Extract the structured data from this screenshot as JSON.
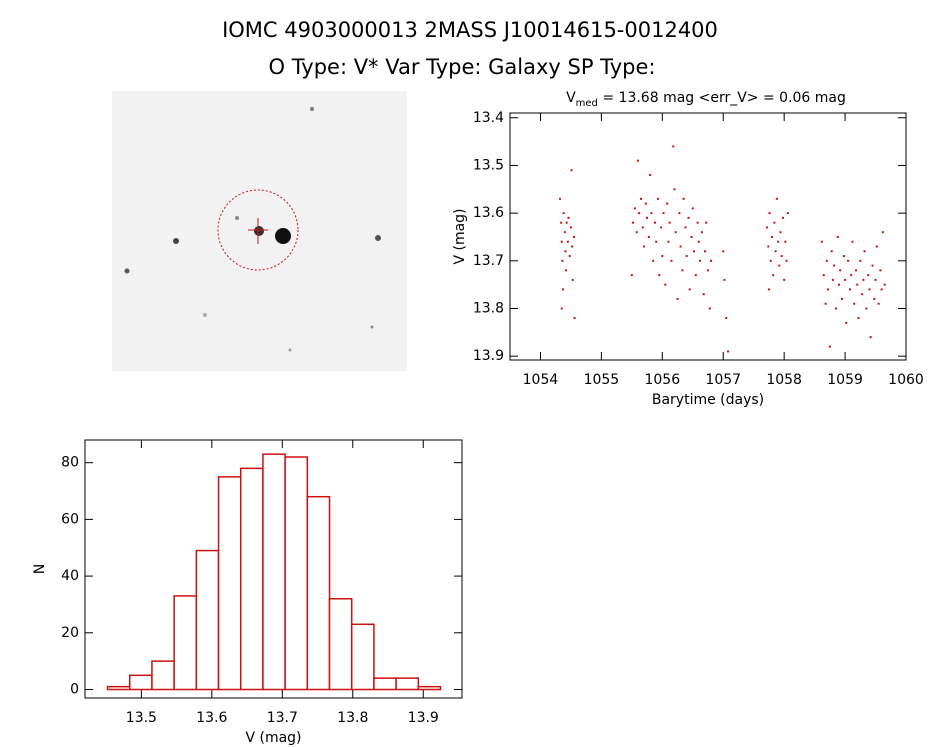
{
  "title": "IOMC 4903000013   2MASS J10014615-0012400",
  "subtitle": "O Type: V*  Var Type: Galaxy  SP Type:",
  "chart_data": [
    {
      "type": "scatter",
      "title": [
        "V",
        "med",
        " = 13.68 mag <err_V> = 0.06 mag"
      ],
      "x_label": "Barytime (days)",
      "y_label": "V (mag)",
      "color": "#cc1111",
      "xlim": [
        1053.5,
        1060
      ],
      "xticks": [
        1054,
        1055,
        1056,
        1057,
        1058,
        1059,
        1060
      ],
      "ylim": [
        13.908,
        13.39
      ],
      "yticks": [
        13.4,
        13.5,
        13.6,
        13.7,
        13.8,
        13.9
      ],
      "x": [
        1054.32,
        1054.34,
        1054.35,
        1054.36,
        1054.37,
        1054.38,
        1054.4,
        1054.41,
        1054.42,
        1054.43,
        1054.45,
        1054.46,
        1054.48,
        1054.5,
        1054.51,
        1054.52,
        1054.53,
        1054.55,
        1054.56,
        1054.35,
        1055.5,
        1055.52,
        1055.55,
        1055.58,
        1055.6,
        1055.62,
        1055.65,
        1055.68,
        1055.7,
        1055.73,
        1055.75,
        1055.78,
        1055.8,
        1055.82,
        1055.85,
        1055.88,
        1055.9,
        1055.93,
        1055.95,
        1055.98,
        1056.0,
        1056.02,
        1056.05,
        1056.08,
        1056.1,
        1056.12,
        1056.15,
        1056.18,
        1056.2,
        1056.22,
        1056.25,
        1056.28,
        1056.3,
        1056.33,
        1056.35,
        1056.38,
        1056.4,
        1056.43,
        1056.45,
        1056.48,
        1056.5,
        1056.52,
        1056.55,
        1056.58,
        1056.6,
        1056.62,
        1056.65,
        1056.68,
        1056.7,
        1056.72,
        1056.75,
        1056.78,
        1056.8,
        1057.0,
        1057.02,
        1057.05,
        1057.08,
        1057.72,
        1057.74,
        1057.76,
        1057.78,
        1057.8,
        1057.82,
        1057.84,
        1057.86,
        1057.88,
        1057.9,
        1057.92,
        1057.94,
        1057.96,
        1057.98,
        1058.0,
        1058.02,
        1058.04,
        1058.06,
        1057.75,
        1058.62,
        1058.65,
        1058.68,
        1058.7,
        1058.72,
        1058.75,
        1058.78,
        1058.8,
        1058.82,
        1058.85,
        1058.88,
        1058.9,
        1058.92,
        1058.95,
        1058.98,
        1059.0,
        1059.02,
        1059.05,
        1059.08,
        1059.1,
        1059.12,
        1059.15,
        1059.18,
        1059.2,
        1059.22,
        1059.25,
        1059.28,
        1059.3,
        1059.32,
        1059.35,
        1059.38,
        1059.4,
        1059.42,
        1059.45,
        1059.48,
        1059.5,
        1059.52,
        1059.55,
        1059.58,
        1059.6,
        1059.62,
        1059.65
      ],
      "values": [
        13.57,
        13.62,
        13.66,
        13.7,
        13.76,
        13.6,
        13.64,
        13.68,
        13.72,
        13.62,
        13.66,
        13.61,
        13.69,
        13.63,
        13.51,
        13.67,
        13.74,
        13.65,
        13.82,
        13.8,
        13.73,
        13.62,
        13.59,
        13.64,
        13.49,
        13.6,
        13.57,
        13.63,
        13.67,
        13.58,
        13.61,
        13.65,
        13.52,
        13.6,
        13.7,
        13.62,
        13.66,
        13.57,
        13.73,
        13.63,
        13.69,
        13.6,
        13.75,
        13.58,
        13.66,
        13.62,
        13.7,
        13.46,
        13.55,
        13.64,
        13.78,
        13.6,
        13.67,
        13.72,
        13.57,
        13.63,
        13.69,
        13.61,
        13.76,
        13.65,
        13.59,
        13.68,
        13.73,
        13.62,
        13.66,
        13.7,
        13.64,
        13.77,
        13.68,
        13.62,
        13.72,
        13.8,
        13.7,
        13.68,
        13.74,
        13.82,
        13.89,
        13.63,
        13.67,
        13.6,
        13.7,
        13.65,
        13.73,
        13.62,
        13.68,
        13.57,
        13.66,
        13.71,
        13.64,
        13.69,
        13.61,
        13.74,
        13.66,
        13.7,
        13.6,
        13.76,
        13.66,
        13.73,
        13.79,
        13.7,
        13.76,
        13.88,
        13.68,
        13.74,
        13.71,
        13.8,
        13.65,
        13.75,
        13.72,
        13.78,
        13.69,
        13.74,
        13.83,
        13.7,
        13.76,
        13.73,
        13.66,
        13.79,
        13.72,
        13.75,
        13.82,
        13.7,
        13.77,
        13.74,
        13.68,
        13.8,
        13.73,
        13.76,
        13.86,
        13.71,
        13.78,
        13.74,
        13.67,
        13.79,
        13.72,
        13.76,
        13.64,
        13.75
      ]
    },
    {
      "type": "histogram",
      "x_label": "V (mag)",
      "y_label": "N",
      "color": "#cc1111",
      "xlim": [
        13.42,
        13.955
      ],
      "xticks": [
        13.5,
        13.6,
        13.7,
        13.8,
        13.9
      ],
      "ylim": [
        -3,
        88
      ],
      "yticks": [
        0,
        20,
        40,
        60,
        80
      ],
      "bins": [
        13.452,
        13.4835,
        13.515,
        13.5465,
        13.578,
        13.6095,
        13.641,
        13.6725,
        13.704,
        13.7355,
        13.767,
        13.7985,
        13.83,
        13.8615,
        13.893,
        13.9245
      ],
      "values": [
        1,
        5,
        10,
        33,
        49,
        75,
        78,
        83,
        82,
        68,
        32,
        23,
        4,
        4,
        1
      ]
    }
  ]
}
